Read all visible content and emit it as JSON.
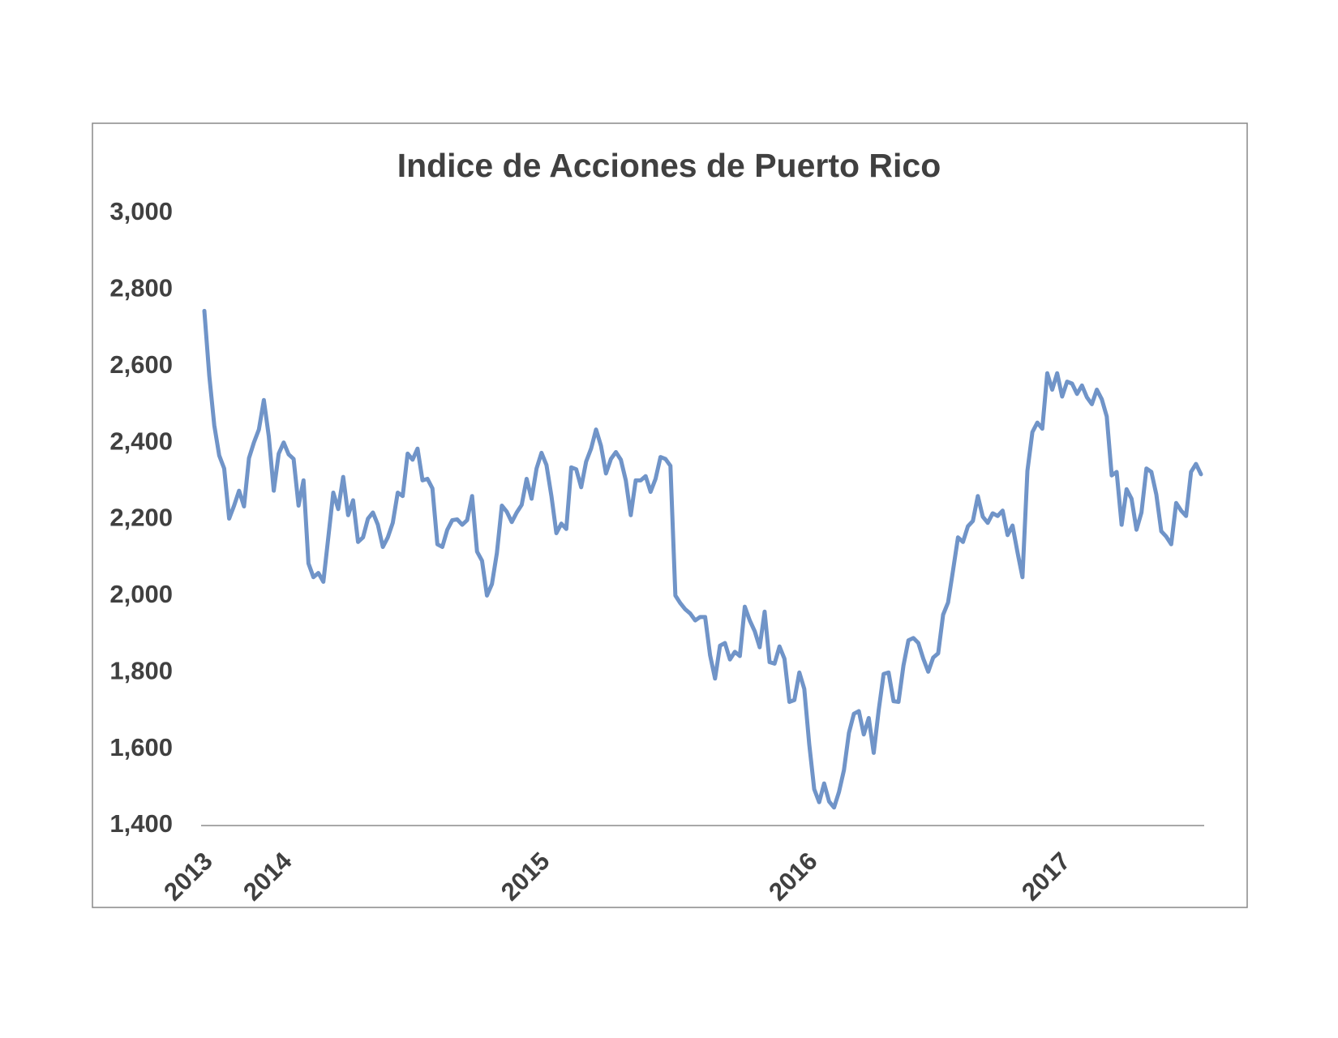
{
  "chart_data": {
    "type": "line",
    "title": "Indice de Acciones de Puerto Rico",
    "categories": [
      "2013",
      null,
      null,
      null,
      null,
      null,
      null,
      null,
      null,
      null,
      null,
      null,
      null,
      null,
      null,
      null,
      "2014",
      null,
      null,
      null,
      null,
      null,
      null,
      null,
      null,
      null,
      null,
      null,
      null,
      null,
      null,
      null,
      null,
      null,
      null,
      null,
      null,
      null,
      null,
      null,
      null,
      null,
      null,
      null,
      null,
      null,
      null,
      null,
      null,
      null,
      null,
      null,
      null,
      null,
      null,
      null,
      null,
      null,
      null,
      null,
      null,
      null,
      null,
      null,
      null,
      null,
      null,
      null,
      "2015",
      null,
      null,
      null,
      null,
      null,
      null,
      null,
      null,
      null,
      null,
      null,
      null,
      null,
      null,
      null,
      null,
      null,
      null,
      null,
      null,
      null,
      null,
      null,
      null,
      null,
      null,
      null,
      null,
      null,
      null,
      null,
      null,
      null,
      null,
      null,
      null,
      null,
      null,
      null,
      null,
      null,
      null,
      null,
      null,
      null,
      null,
      null,
      null,
      null,
      null,
      null,
      null,
      null,
      "2016",
      null,
      null,
      null,
      null,
      null,
      null,
      null,
      null,
      null,
      null,
      null,
      null,
      null,
      null,
      null,
      null,
      null,
      null,
      null,
      null,
      null,
      null,
      null,
      null,
      null,
      null,
      null,
      null,
      null,
      null,
      null,
      null,
      null,
      null,
      null,
      null,
      null,
      null,
      null,
      null,
      null,
      null,
      null,
      null,
      null,
      null,
      null,
      null,
      null,
      null,
      "2017",
      null,
      null,
      null,
      null,
      null,
      null,
      null,
      null,
      null,
      null,
      null,
      null,
      null,
      null,
      null,
      null,
      null,
      null,
      null,
      null,
      null,
      null,
      null,
      null,
      null,
      null,
      null,
      null
    ],
    "values": [
      2745,
      2575,
      2446,
      2367,
      2333,
      2202,
      2236,
      2275,
      2234,
      2360,
      2401,
      2435,
      2512,
      2417,
      2275,
      2372,
      2401,
      2370,
      2358,
      2236,
      2302,
      2085,
      2049,
      2060,
      2037,
      2153,
      2270,
      2227,
      2311,
      2211,
      2250,
      2141,
      2153,
      2202,
      2218,
      2186,
      2128,
      2153,
      2191,
      2270,
      2261,
      2372,
      2356,
      2385,
      2302,
      2306,
      2281,
      2135,
      2128,
      2173,
      2198,
      2200,
      2186,
      2198,
      2261,
      2116,
      2092,
      2001,
      2031,
      2112,
      2236,
      2220,
      2193,
      2218,
      2238,
      2306,
      2254,
      2333,
      2374,
      2342,
      2261,
      2164,
      2189,
      2175,
      2336,
      2331,
      2284,
      2351,
      2385,
      2435,
      2392,
      2320,
      2358,
      2376,
      2356,
      2302,
      2211,
      2302,
      2302,
      2313,
      2272,
      2306,
      2363,
      2358,
      2340,
      2001,
      1981,
      1965,
      1954,
      1936,
      1945,
      1945,
      1845,
      1784,
      1870,
      1877,
      1834,
      1854,
      1843,
      1972,
      1936,
      1908,
      1866,
      1959,
      1827,
      1823,
      1868,
      1836,
      1723,
      1728,
      1800,
      1757,
      1612,
      1495,
      1461,
      1510,
      1463,
      1447,
      1488,
      1545,
      1642,
      1692,
      1699,
      1638,
      1681,
      1590,
      1701,
      1796,
      1800,
      1725,
      1723,
      1818,
      1884,
      1890,
      1877,
      1836,
      1802,
      1839,
      1850,
      1951,
      1983,
      2067,
      2153,
      2141,
      2182,
      2196,
      2261,
      2207,
      2191,
      2216,
      2209,
      2223,
      2159,
      2184,
      2114,
      2049,
      2327,
      2428,
      2453,
      2437,
      2582,
      2539,
      2582,
      2521,
      2560,
      2555,
      2528,
      2550,
      2519,
      2501,
      2539,
      2514,
      2469,
      2315,
      2324,
      2186,
      2279,
      2254,
      2173,
      2218,
      2333,
      2324,
      2265,
      2169,
      2155,
      2135,
      2243,
      2223,
      2209,
      2324,
      2345,
      2318
    ],
    "color": "#7094c8",
    "ylim": [
      1400,
      3000
    ],
    "yticks": [
      {
        "value": 1400,
        "label": "1,400"
      },
      {
        "value": 1600,
        "label": "1,600"
      },
      {
        "value": 1800,
        "label": "1,800"
      },
      {
        "value": 2000,
        "label": "2,000"
      },
      {
        "value": 2200,
        "label": "2,200"
      },
      {
        "value": 2400,
        "label": "2,400"
      },
      {
        "value": 2600,
        "label": "2,600"
      },
      {
        "value": 2800,
        "label": "2,800"
      },
      {
        "value": 3000,
        "label": "3,000"
      }
    ],
    "grid": false
  }
}
